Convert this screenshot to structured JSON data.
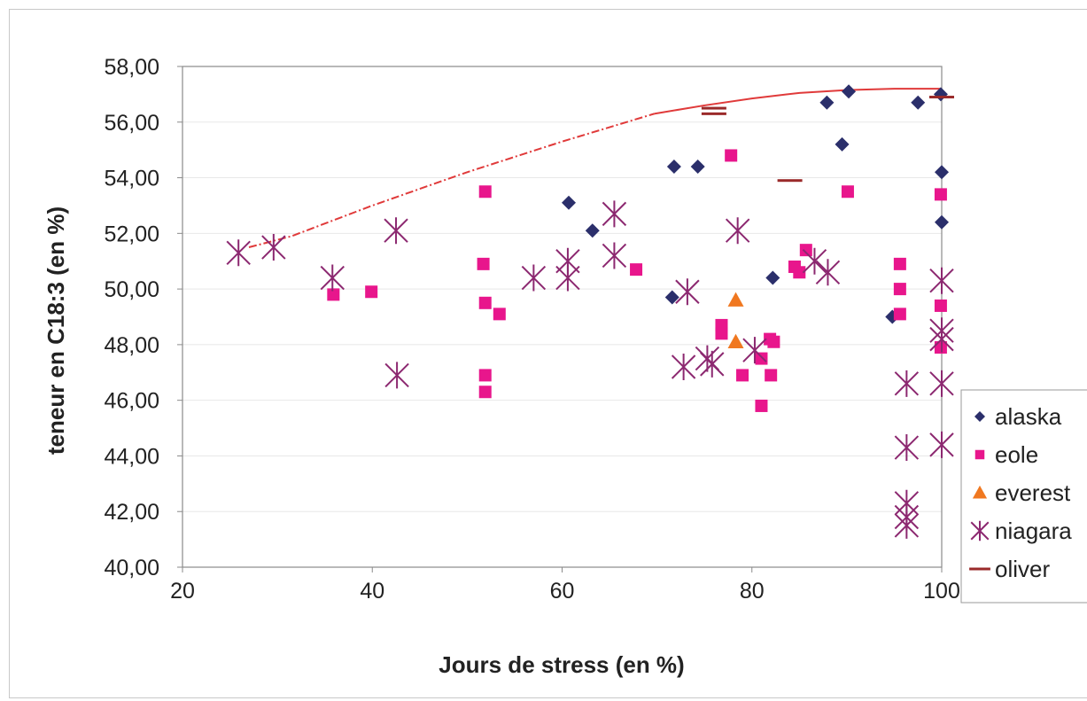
{
  "chart_data": {
    "type": "scatter",
    "title": "",
    "xlabel": "Jours de stress (en %)",
    "ylabel": "teneur en C18:3 (en %)",
    "xlim": [
      20,
      100
    ],
    "ylim": [
      40,
      58
    ],
    "x_ticks": [
      "20",
      "40",
      "60",
      "80",
      "100"
    ],
    "y_ticks": [
      "40,00",
      "42,00",
      "44,00",
      "46,00",
      "48,00",
      "50,00",
      "52,00",
      "54,00",
      "56,00",
      "58,00"
    ],
    "grid": true,
    "legend_position": "right",
    "series": [
      {
        "name": "alaska",
        "marker": "diamond",
        "color": "#2b2f6b",
        "points": [
          [
            60.7,
            53.1
          ],
          [
            63.2,
            52.1
          ],
          [
            71.6,
            49.7
          ],
          [
            71.8,
            54.4
          ],
          [
            74.3,
            54.4
          ],
          [
            82.2,
            50.4
          ],
          [
            87.9,
            56.7
          ],
          [
            89.5,
            55.2
          ],
          [
            90.2,
            57.1
          ],
          [
            94.8,
            49.0
          ],
          [
            97.5,
            56.7
          ],
          [
            99.9,
            57.0
          ],
          [
            100.0,
            54.2
          ],
          [
            100.0,
            52.4
          ]
        ]
      },
      {
        "name": "eole",
        "marker": "square",
        "color": "#e8168c",
        "points": [
          [
            35.9,
            49.8
          ],
          [
            39.9,
            49.9
          ],
          [
            51.7,
            50.9
          ],
          [
            51.9,
            49.5
          ],
          [
            51.9,
            53.5
          ],
          [
            51.9,
            46.9
          ],
          [
            51.9,
            46.3
          ],
          [
            53.4,
            49.1
          ],
          [
            67.8,
            50.7
          ],
          [
            76.8,
            48.7
          ],
          [
            76.8,
            48.4
          ],
          [
            77.8,
            54.8
          ],
          [
            79.0,
            46.9
          ],
          [
            81.0,
            47.5
          ],
          [
            81.0,
            45.8
          ],
          [
            81.9,
            48.2
          ],
          [
            82.0,
            46.9
          ],
          [
            82.3,
            48.1
          ],
          [
            84.5,
            50.8
          ],
          [
            85.0,
            50.6
          ],
          [
            85.7,
            51.4
          ],
          [
            90.1,
            53.5
          ],
          [
            95.6,
            50.9
          ],
          [
            95.6,
            50.0
          ],
          [
            95.6,
            49.1
          ],
          [
            99.9,
            49.4
          ],
          [
            99.9,
            47.9
          ],
          [
            99.9,
            53.4
          ]
        ]
      },
      {
        "name": "everest",
        "marker": "triangle",
        "color": "#f07820",
        "points": [
          [
            78.3,
            49.6
          ],
          [
            78.3,
            48.1
          ]
        ]
      },
      {
        "name": "niagara",
        "marker": "asterisk",
        "color": "#8c2870",
        "points": [
          [
            25.9,
            51.3
          ],
          [
            29.6,
            51.5
          ],
          [
            35.8,
            50.4
          ],
          [
            42.5,
            52.1
          ],
          [
            42.6,
            46.9
          ],
          [
            57.0,
            50.4
          ],
          [
            60.6,
            51.0
          ],
          [
            60.6,
            50.4
          ],
          [
            65.5,
            52.7
          ],
          [
            65.5,
            51.2
          ],
          [
            72.8,
            47.2
          ],
          [
            73.2,
            49.9
          ],
          [
            75.3,
            47.5
          ],
          [
            75.8,
            47.3
          ],
          [
            78.5,
            52.1
          ],
          [
            80.3,
            47.8
          ],
          [
            86.6,
            51.0
          ],
          [
            88.0,
            50.6
          ],
          [
            96.3,
            46.6
          ],
          [
            96.3,
            44.3
          ],
          [
            96.3,
            42.3
          ],
          [
            96.3,
            41.8
          ],
          [
            96.3,
            41.5
          ],
          [
            100.0,
            50.3
          ],
          [
            100.0,
            48.5
          ],
          [
            100.0,
            48.2
          ],
          [
            100.0,
            46.6
          ],
          [
            100.0,
            44.4
          ]
        ]
      },
      {
        "name": "oliver",
        "marker": "dash",
        "color": "#9a2a2a",
        "points": [
          [
            76.0,
            56.5
          ],
          [
            76.0,
            56.3
          ],
          [
            84.0,
            53.9
          ],
          [
            100.0,
            56.9
          ]
        ]
      }
    ],
    "envelope_line": {
      "color": "#e03a3a",
      "dashed_points": [
        [
          27.0,
          51.5
        ],
        [
          31.5,
          51.9
        ],
        [
          40.0,
          53.0
        ],
        [
          50.0,
          54.2
        ],
        [
          60.0,
          55.3
        ],
        [
          69.7,
          56.3
        ]
      ],
      "solid_points": [
        [
          69.7,
          56.3
        ],
        [
          75.0,
          56.6
        ],
        [
          80.0,
          56.85
        ],
        [
          85.0,
          57.05
        ],
        [
          90.0,
          57.15
        ],
        [
          95.0,
          57.2
        ],
        [
          100.0,
          57.2
        ]
      ]
    }
  }
}
